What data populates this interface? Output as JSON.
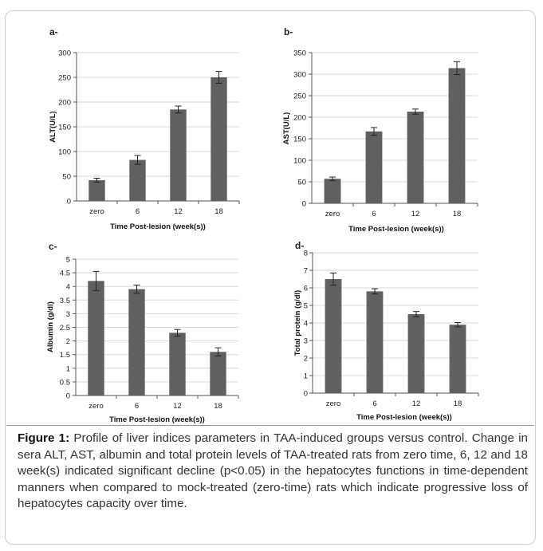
{
  "figure": {
    "caption_label": "Figure 1:",
    "caption_text": " Profile of liver indices parameters in TAA-induced groups versus control. Change in sera ALT, AST, albumin and total protein levels of TAA-treated rats from zero time, 6, 12 and 18 week(s) indicated significant decline (p<0.05) in the hepatocytes functions in time-dependent manners when compared to mock-treated (zero-time) rats which indicate progressive loss of hepatocytes capacity over time."
  },
  "colors": {
    "bar": "#606060",
    "grid": "#d9d9d9",
    "axis": "#555555",
    "error": "#222222"
  },
  "chart_data": [
    {
      "panel": "a-",
      "type": "bar",
      "categories": [
        "zero",
        "6",
        "12",
        "18"
      ],
      "values": [
        42,
        83,
        185,
        250
      ],
      "errors": [
        4,
        9,
        7,
        12
      ],
      "xlabel": "Time Post-lesion (week(s))",
      "ylabel": "ALT(U/L)",
      "ylim": [
        0,
        300
      ],
      "yticks": [
        "0",
        "50",
        "100",
        "150",
        "200",
        "250",
        "300"
      ],
      "grid": true
    },
    {
      "panel": "b-",
      "type": "bar",
      "categories": [
        "zero",
        "6",
        "12",
        "18"
      ],
      "values": [
        57,
        167,
        213,
        314
      ],
      "errors": [
        4,
        9,
        6,
        15
      ],
      "xlabel": "Time Post-lesion (week(s))",
      "ylabel": "AST(U/L)",
      "ylim": [
        0,
        350
      ],
      "yticks": [
        "0",
        "50",
        "100",
        "150",
        "200",
        "250",
        "300",
        "350"
      ],
      "grid": true
    },
    {
      "panel": "c-",
      "type": "bar",
      "categories": [
        "zero",
        "6",
        "12",
        "18"
      ],
      "values": [
        4.2,
        3.9,
        2.3,
        1.6
      ],
      "errors": [
        0.35,
        0.15,
        0.12,
        0.15
      ],
      "xlabel": "Time Post-lesion (week(s))",
      "ylabel": "Albumin (g/dl)",
      "ylim": [
        0,
        5
      ],
      "yticks": [
        "0",
        "0.5",
        "1",
        "1.5",
        "2",
        "2.5",
        "3",
        "3.5",
        "4",
        "4.5",
        "5"
      ],
      "grid": true
    },
    {
      "panel": "d-",
      "type": "bar",
      "categories": [
        "zero",
        "6",
        "12",
        "18"
      ],
      "values": [
        6.5,
        5.8,
        4.5,
        3.9
      ],
      "errors": [
        0.35,
        0.15,
        0.15,
        0.12
      ],
      "xlabel": "Time Post-lesion (week(s))",
      "ylabel": "Total protein (g/dl)",
      "ylim": [
        0,
        8
      ],
      "yticks": [
        "0",
        "1",
        "2",
        "3",
        "4",
        "5",
        "6",
        "7",
        "8"
      ],
      "grid": true
    }
  ]
}
